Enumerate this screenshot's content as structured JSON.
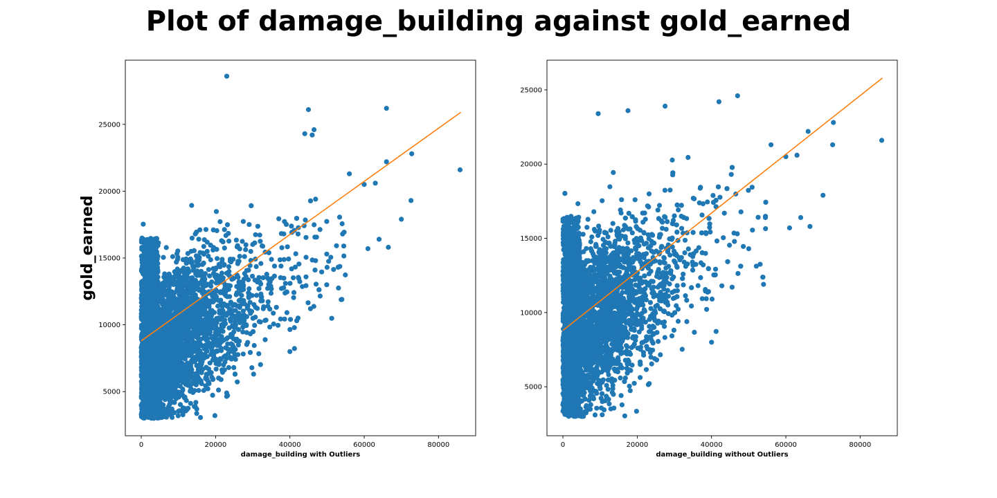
{
  "figure_title": "Plot of damage_building against gold_earned",
  "colors": {
    "points": "#1f77b4",
    "fit_line": "#ff7f0e"
  },
  "chart_data": [
    {
      "type": "scatter",
      "title": "",
      "xlabel": "damage_building with Outliers",
      "ylabel": "gold_earned",
      "xlim": [
        -4300,
        90000
      ],
      "ylim": [
        1700,
        29800
      ],
      "xticks": [
        0,
        20000,
        40000,
        60000,
        80000
      ],
      "yticks": [
        5000,
        10000,
        15000,
        20000,
        25000
      ],
      "fit_line": {
        "x": [
          0,
          86000
        ],
        "y": [
          8800,
          25900
        ]
      },
      "highlight_points": [
        [
          23000,
          28600
        ],
        [
          45000,
          26100
        ],
        [
          66000,
          26200
        ],
        [
          85800,
          21600
        ],
        [
          72800,
          22800
        ],
        [
          70000,
          17900
        ],
        [
          66500,
          15800
        ],
        [
          61000,
          15700
        ],
        [
          64000,
          16400
        ],
        [
          54000,
          11900
        ],
        [
          40000,
          8000
        ],
        [
          60000,
          20500
        ],
        [
          66000,
          22200
        ],
        [
          63000,
          20600
        ],
        [
          46500,
          24600
        ],
        [
          72600,
          19300
        ],
        [
          56000,
          21300
        ],
        [
          50000,
          14300
        ],
        [
          44000,
          24300
        ],
        [
          46000,
          24200
        ]
      ]
    },
    {
      "type": "scatter",
      "title": "",
      "xlabel": "damage_building without Outliers",
      "ylabel": "",
      "xlim": [
        -4300,
        90000
      ],
      "ylim": [
        1700,
        27000
      ],
      "xticks": [
        0,
        20000,
        40000,
        60000,
        80000
      ],
      "yticks": [
        5000,
        10000,
        15000,
        20000,
        25000
      ],
      "fit_line": {
        "x": [
          0,
          86000
        ],
        "y": [
          8800,
          25800
        ]
      },
      "highlight_points": [
        [
          47000,
          24600
        ],
        [
          85800,
          21600
        ],
        [
          72800,
          22800
        ],
        [
          70000,
          17900
        ],
        [
          66500,
          15800
        ],
        [
          61000,
          15700
        ],
        [
          64000,
          16400
        ],
        [
          54000,
          11900
        ],
        [
          40000,
          8000
        ],
        [
          60000,
          20500
        ],
        [
          66000,
          22200
        ],
        [
          63000,
          20600
        ],
        [
          72600,
          21300
        ],
        [
          56000,
          21300
        ],
        [
          50000,
          14300
        ],
        [
          42000,
          24200
        ],
        [
          27500,
          23900
        ],
        [
          17500,
          23600
        ],
        [
          9500,
          23400
        ],
        [
          5000,
          3000
        ]
      ]
    }
  ]
}
